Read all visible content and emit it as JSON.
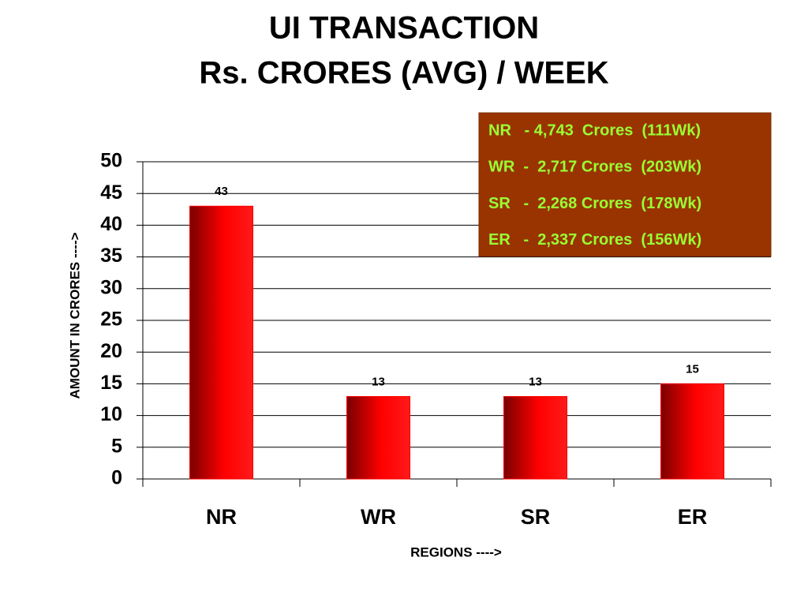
{
  "chart_data": {
    "type": "bar",
    "title": "UI TRANSACTION",
    "subtitle": "Rs. CRORES (AVG) / WEEK",
    "x_label": "REGIONS ---->",
    "y_label": "AMOUNT IN CRORES ---->",
    "categories": [
      "NR",
      "WR",
      "SR",
      "ER"
    ],
    "values": [
      43,
      13,
      13,
      15
    ],
    "color": "#ff0000",
    "ylim": [
      0,
      50
    ],
    "yticks": [
      0,
      5,
      10,
      15,
      20,
      25,
      30,
      35,
      40,
      45,
      50
    ],
    "grid": true,
    "annotations": [
      "NR   - 4,743  Crores  (111Wk)",
      "WR  -  2,717 Crores  (203Wk)",
      "SR   -  2,268 Crores  (178Wk)",
      "ER   -  2,337 Crores  (156Wk)"
    ]
  }
}
